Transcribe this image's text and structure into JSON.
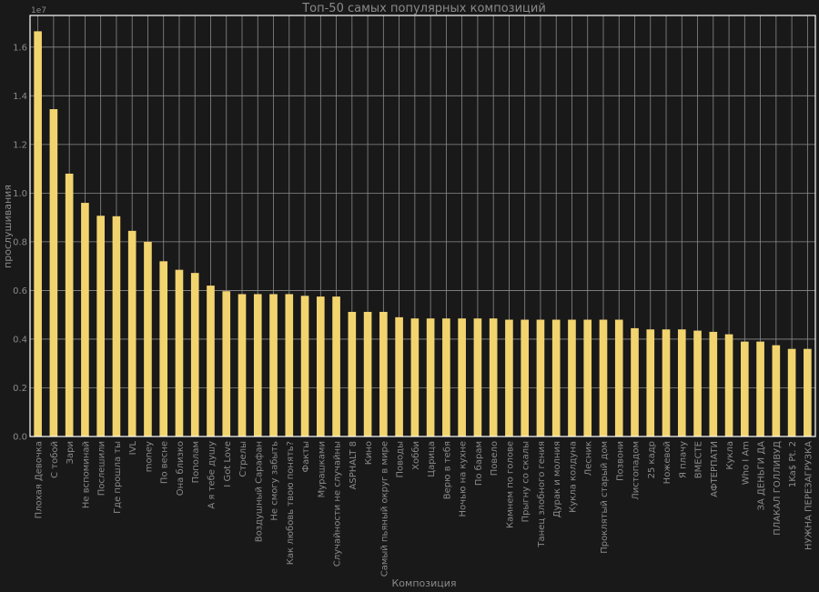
{
  "colors": {
    "background": "#191919",
    "bar": "#f2d46f",
    "grid": "#8a8a8a",
    "text": "#8a8a8a",
    "frame": "#ffffff"
  },
  "chart_data": {
    "type": "bar",
    "title": "Топ-50 самых популярных композиций",
    "xlabel": "Композиция",
    "ylabel": "прослушивания",
    "y_offset_label": "1e7",
    "ylim": [
      0,
      1.73
    ],
    "yticks": [
      "0.0",
      "0.2",
      "0.4",
      "0.6",
      "0.8",
      "1.0",
      "1.2",
      "1.4",
      "1.6"
    ],
    "grid": true,
    "categories": [
      "Плохая Девочка",
      "С тобой",
      "Зари",
      "Не вспоминай",
      "Послешили",
      "Где прошла ты",
      "IVL",
      "money",
      "По весне",
      "Она близко",
      "Пополам",
      "А я тебе душу",
      "I Got Love",
      "Стрелы",
      "Воздушный Сарафан",
      "Не смогу забыть",
      "Как любовь твою понять?",
      "Факты",
      "Мурашками",
      "Случайности не случайны",
      "ASPHALT 8",
      "Кино",
      "Самый пьяный округ в мире",
      "Поводы",
      "Хобби",
      "Царица",
      "Верю в тебя",
      "Ночью на кухне",
      "По барам",
      "Повело",
      "Камнем по голове",
      "Прыгну со скалы",
      "Танец злобного гения",
      "Дурак и молния",
      "Кукла колдуна",
      "Лесник",
      "Проклятый старый дом",
      "Позвони",
      "Листопадом",
      "25 кадр",
      "Ножевой",
      "Я плачу",
      "ВМЕСТЕ",
      "АФТЕРПАТИ",
      "Кукла",
      "Who I Am",
      "ЗА ДЕНЬГИ ДА",
      "ПЛАКАЛ ГОЛЛИВУД",
      "1Ka$ Pt. 2",
      "НУЖНА ПЕРЕЗАГРУЗКА"
    ],
    "values": [
      1.665,
      1.345,
      1.08,
      0.96,
      0.907,
      0.905,
      0.845,
      0.8,
      0.72,
      0.685,
      0.672,
      0.62,
      0.597,
      0.585,
      0.585,
      0.585,
      0.585,
      0.578,
      0.575,
      0.575,
      0.512,
      0.512,
      0.512,
      0.49,
      0.485,
      0.485,
      0.485,
      0.485,
      0.485,
      0.485,
      0.48,
      0.48,
      0.48,
      0.48,
      0.48,
      0.48,
      0.48,
      0.48,
      0.445,
      0.44,
      0.44,
      0.44,
      0.435,
      0.43,
      0.42,
      0.39,
      0.39,
      0.375,
      0.36,
      0.36
    ]
  }
}
